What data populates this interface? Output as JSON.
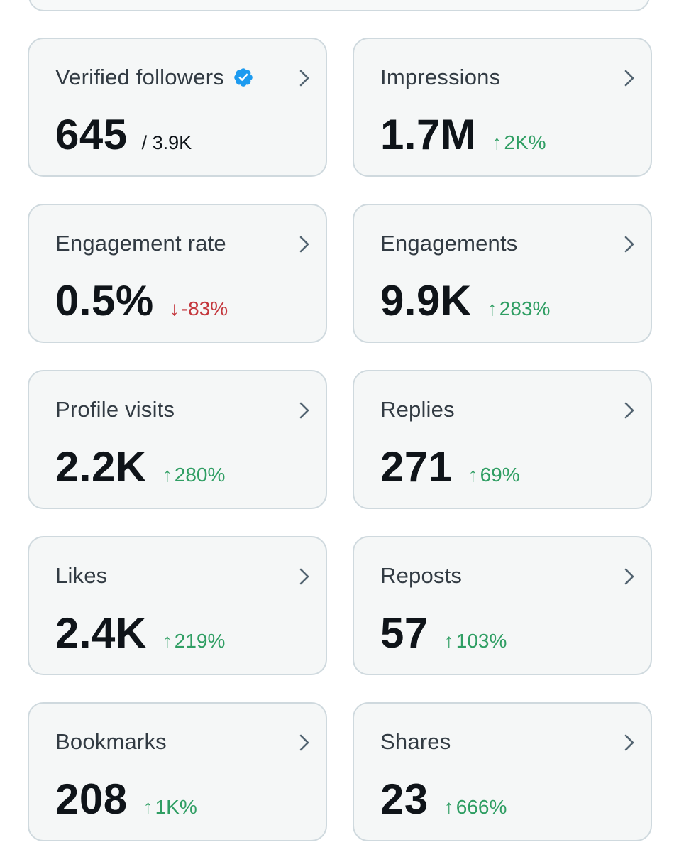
{
  "colors": {
    "up": "#2f9e63",
    "down": "#c4363c",
    "verified": "#1d9bf0",
    "card_bg": "#f5f7f7",
    "card_border": "#cfd9de"
  },
  "cards": [
    {
      "title": "Verified followers",
      "value": "645",
      "denom": "/ 3.9K"
    },
    {
      "title": "Impressions",
      "value": "1.7M",
      "change": "2K%",
      "direction": "up",
      "arrow": "↑"
    },
    {
      "title": "Engagement rate",
      "value": "0.5%",
      "change": "-83%",
      "direction": "down",
      "arrow": "↓"
    },
    {
      "title": "Engagements",
      "value": "9.9K",
      "change": "283%",
      "direction": "up",
      "arrow": "↑"
    },
    {
      "title": "Profile visits",
      "value": "2.2K",
      "change": "280%",
      "direction": "up",
      "arrow": "↑"
    },
    {
      "title": "Replies",
      "value": "271",
      "change": "69%",
      "direction": "up",
      "arrow": "↑"
    },
    {
      "title": "Likes",
      "value": "2.4K",
      "change": "219%",
      "direction": "up",
      "arrow": "↑"
    },
    {
      "title": "Reposts",
      "value": "57",
      "change": "103%",
      "direction": "up",
      "arrow": "↑"
    },
    {
      "title": "Bookmarks",
      "value": "208",
      "change": "1K%",
      "direction": "up",
      "arrow": "↑"
    },
    {
      "title": "Shares",
      "value": "23",
      "change": "666%",
      "direction": "up",
      "arrow": "↑"
    }
  ]
}
